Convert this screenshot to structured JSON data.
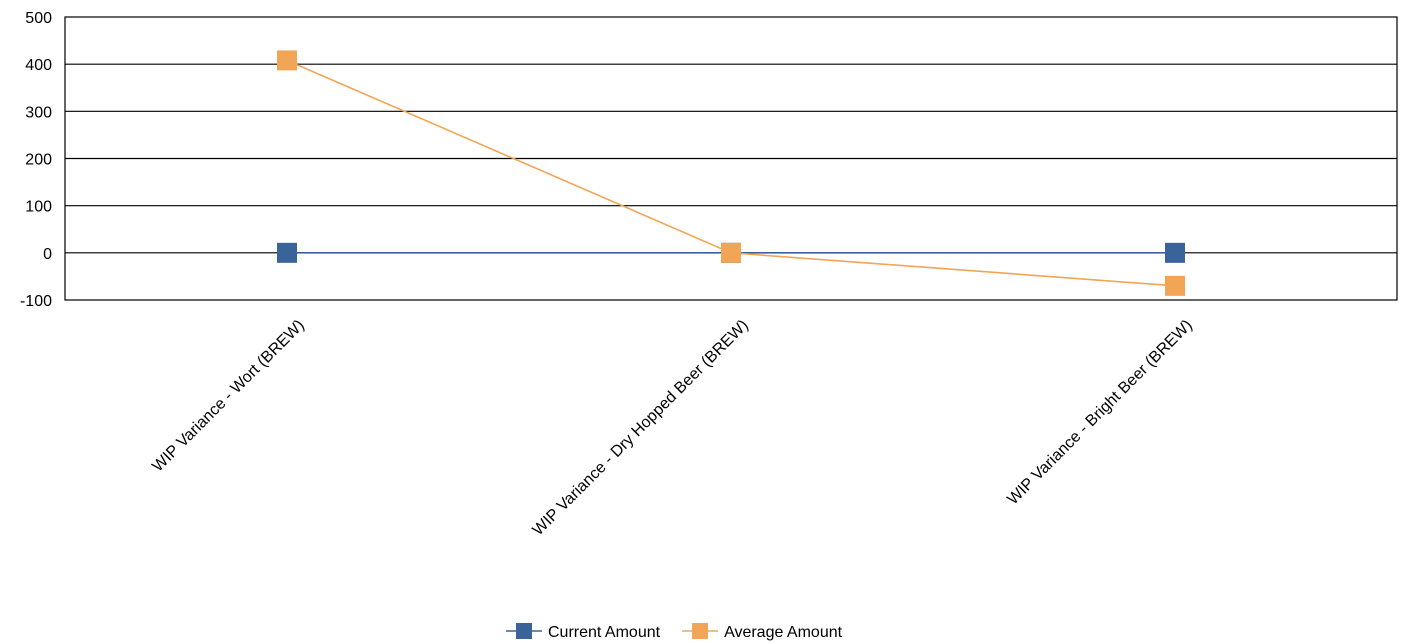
{
  "chart_data": {
    "type": "line",
    "categories": [
      "WIP Variance - Wort (BREW)",
      "WIP Variance - Dry Hopped Beer (BREW)",
      "WIP Variance - Bright Beer (BREW)"
    ],
    "series": [
      {
        "name": "Current Amount",
        "values": [
          0,
          0,
          0
        ],
        "color": "#3a6399"
      },
      {
        "name": "Average Amount",
        "values": [
          408,
          0,
          -70
        ],
        "color": "#f2a556"
      }
    ],
    "ylim": [
      -100,
      500
    ],
    "yticks": [
      -100,
      0,
      100,
      200,
      300,
      400,
      500
    ],
    "grid": true,
    "legend": "bottom",
    "marker": "square"
  }
}
